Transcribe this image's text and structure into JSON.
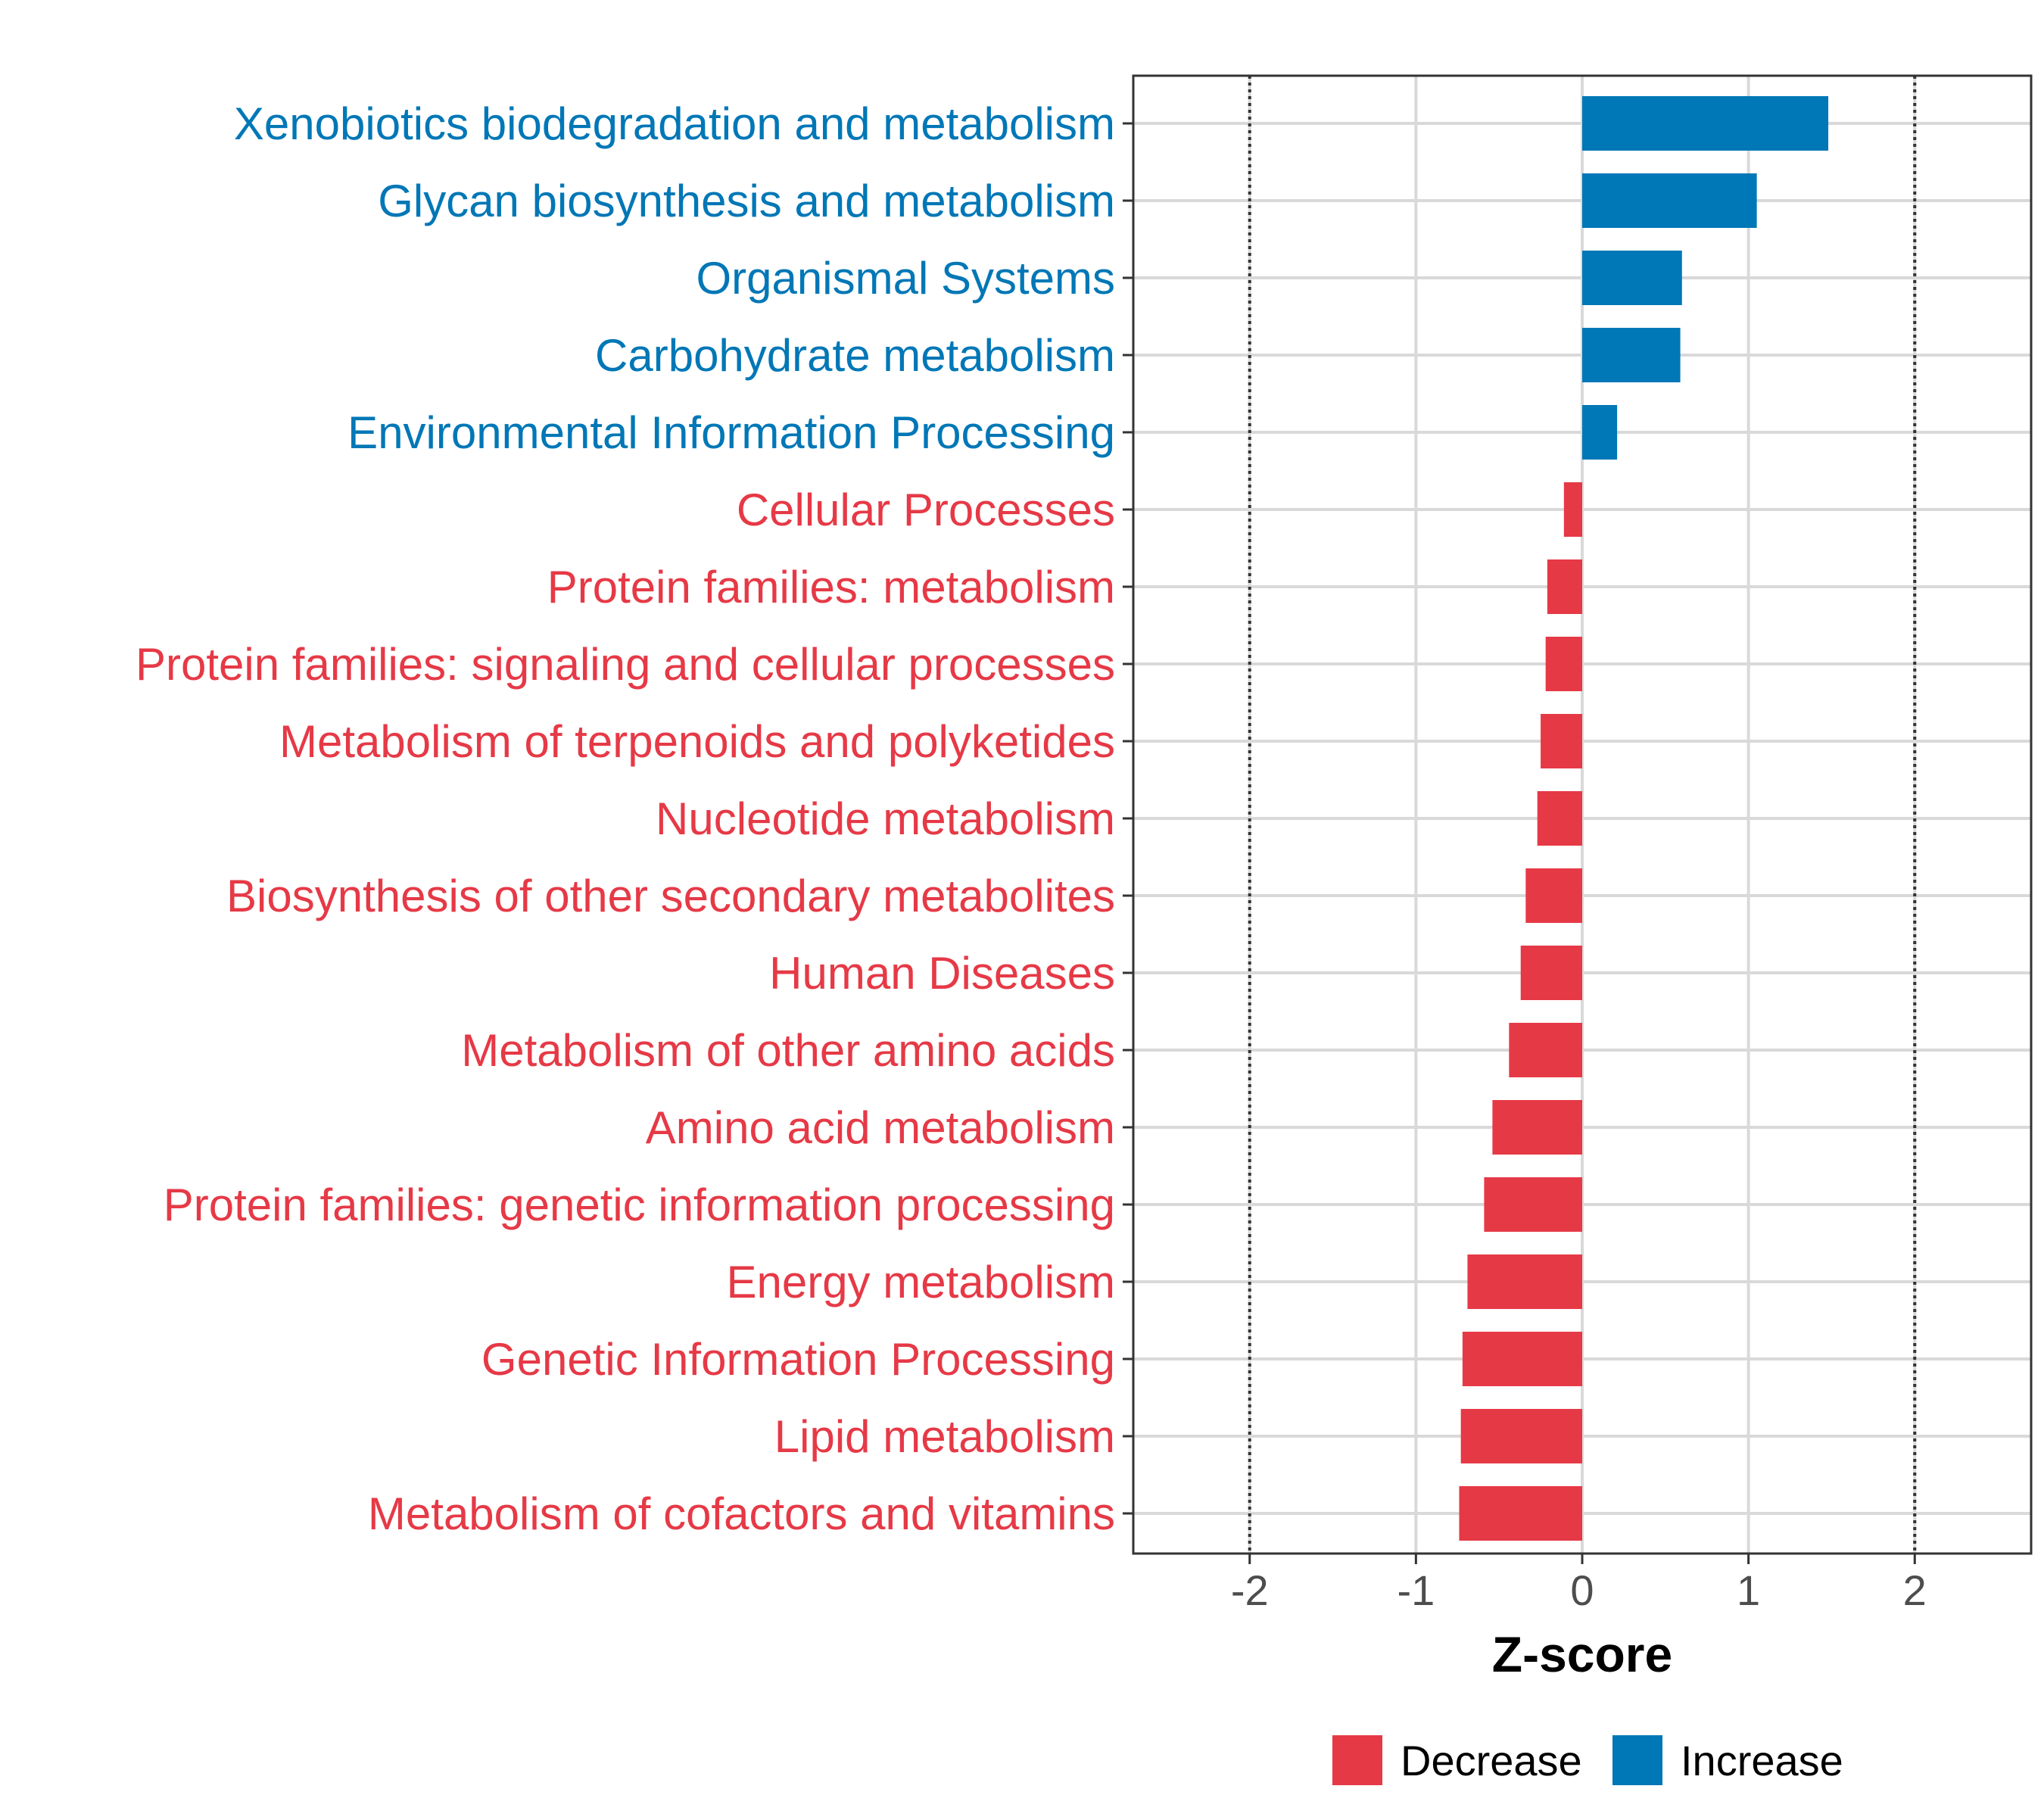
{
  "colors": {
    "increase": "#0077B6",
    "decrease": "#E63946",
    "grid": "#d9d9d9",
    "axis": "#333333",
    "tick_text": "#4d4d4d"
  },
  "chart_data": {
    "type": "bar",
    "orientation": "horizontal",
    "title": "",
    "xlabel": "Z-score",
    "ylabel": "",
    "xlim": [
      -2.7,
      2.7
    ],
    "xticks": [
      -2,
      -1,
      0,
      1,
      2
    ],
    "xtick_labels": [
      "-2",
      "-1",
      "0",
      "1",
      "2"
    ],
    "reference_lines": [
      -2,
      2
    ],
    "grid": true,
    "legend_position": "bottom",
    "categories": [
      "Xenobiotics biodegradation and metabolism",
      "Glycan biosynthesis and metabolism",
      "Organismal Systems",
      "Carbohydrate metabolism",
      "Environmental Information Processing",
      "Cellular Processes",
      "Protein families: metabolism",
      "Protein families: signaling and cellular processes",
      "Metabolism of terpenoids and polyketides",
      "Nucleotide metabolism",
      "Biosynthesis of other secondary metabolites",
      "Human Diseases",
      "Metabolism of other amino acids",
      "Amino acid metabolism",
      "Protein families: genetic information processing",
      "Energy metabolism",
      "Genetic Information Processing",
      "Lipid metabolism",
      "Metabolism of cofactors and vitamins"
    ],
    "values": [
      1.48,
      1.05,
      0.6,
      0.59,
      0.21,
      -0.11,
      -0.21,
      -0.22,
      -0.25,
      -0.27,
      -0.34,
      -0.37,
      -0.44,
      -0.54,
      -0.59,
      -0.69,
      -0.72,
      -0.73,
      -0.74
    ],
    "groups": [
      "Increase",
      "Increase",
      "Increase",
      "Increase",
      "Increase",
      "Decrease",
      "Decrease",
      "Decrease",
      "Decrease",
      "Decrease",
      "Decrease",
      "Decrease",
      "Decrease",
      "Decrease",
      "Decrease",
      "Decrease",
      "Decrease",
      "Decrease",
      "Decrease"
    ],
    "legend": [
      {
        "name": "Decrease",
        "color": "#E63946"
      },
      {
        "name": "Increase",
        "color": "#0077B6"
      }
    ]
  }
}
